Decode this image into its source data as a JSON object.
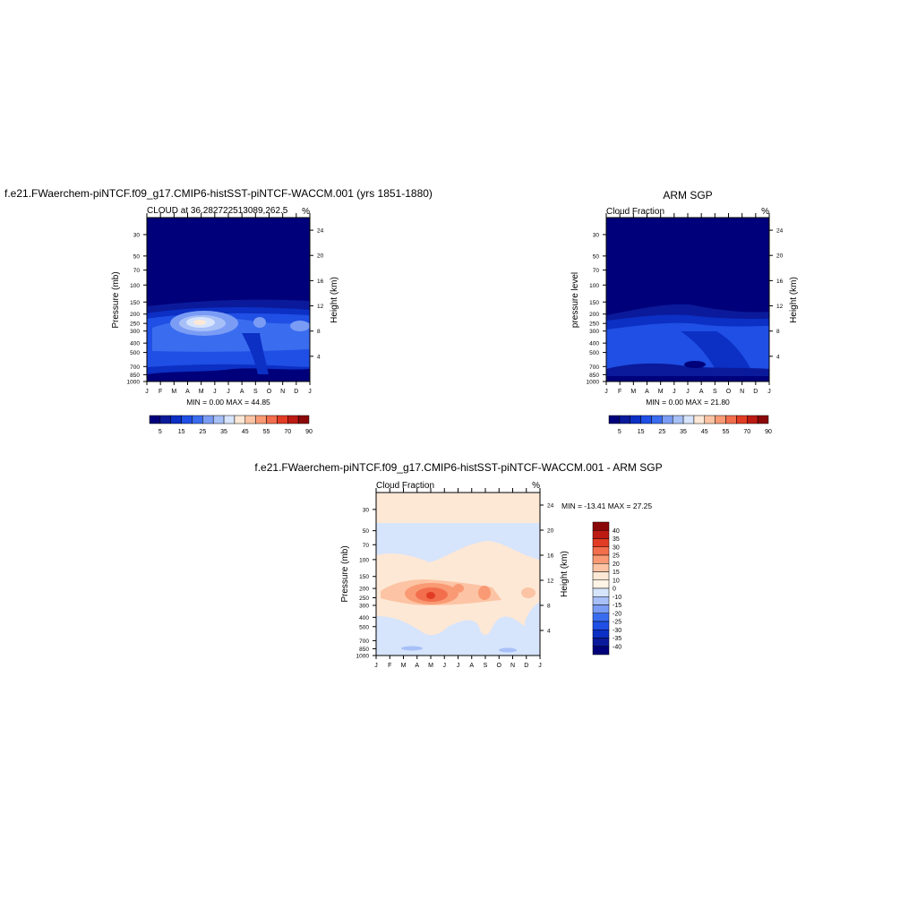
{
  "figure": {
    "top_title": "f.e21.FWaerchem-piNTCF.f09_g17.CMIP6-histSST-piNTCF-WACCM.001 (yrs 1851-1880)",
    "obs_title": "ARM SGP",
    "diff_title": "f.e21.FWaerchem-piNTCF.f09_g17.CMIP6-histSST-piNTCF-WACCM.001 - ARM SGP"
  },
  "panels": [
    {
      "id": "model",
      "left_label": "CLOUD at 36.282722513089,262.5",
      "units": "%",
      "ylabel": "Pressure (mb)",
      "ylabel_right": "Height (km)",
      "stats": "MIN =   0.00 MAX =  44.85"
    },
    {
      "id": "obs",
      "left_label": "Cloud Fraction",
      "units": "%",
      "ylabel": "pressure level",
      "ylabel_right": "Height (km)",
      "stats": "MIN =   0.00 MAX =  21.80"
    },
    {
      "id": "diff",
      "left_label": "Cloud Fraction",
      "units": "%",
      "ylabel": "Pressure (mb)",
      "ylabel_right": "Height (km)",
      "stats": "MIN = -13.41 MAX =  27.25"
    }
  ],
  "chart_data": [
    {
      "type": "heatmap",
      "title": "CLOUD at 36.282722513089,262.5",
      "x": [
        "J",
        "F",
        "M",
        "A",
        "M",
        "J",
        "J",
        "A",
        "S",
        "O",
        "N",
        "D",
        "J"
      ],
      "y_pressure_ticks": [
        30,
        50,
        70,
        100,
        150,
        200,
        250,
        300,
        400,
        500,
        700,
        850,
        1000
      ],
      "y_height_ticks": [
        24,
        20,
        16,
        12,
        8,
        4
      ],
      "ylabel": "Pressure (mb)",
      "ylabel_right": "Height (km)",
      "ylim": [
        1000,
        20
      ],
      "y_scale": "log",
      "colorbar_labels": [
        5,
        15,
        25,
        35,
        45,
        55,
        70,
        90
      ],
      "min": 0.0,
      "max": 44.85,
      "units": "%"
    },
    {
      "type": "heatmap",
      "title": "Cloud Fraction",
      "x": [
        "J",
        "F",
        "M",
        "A",
        "M",
        "J",
        "J",
        "A",
        "S",
        "O",
        "N",
        "D",
        "J"
      ],
      "y_pressure_ticks": [
        30,
        50,
        70,
        100,
        150,
        200,
        250,
        300,
        400,
        500,
        700,
        850,
        1000
      ],
      "y_height_ticks": [
        24,
        20,
        16,
        12,
        8,
        4
      ],
      "ylabel": "pressure level",
      "ylabel_right": "Height (km)",
      "ylim": [
        1000,
        20
      ],
      "y_scale": "log",
      "colorbar_labels": [
        5,
        15,
        25,
        35,
        45,
        55,
        70,
        90
      ],
      "min": 0.0,
      "max": 21.8,
      "units": "%"
    },
    {
      "type": "heatmap",
      "title": "Cloud Fraction",
      "x": [
        "J",
        "F",
        "M",
        "A",
        "M",
        "J",
        "J",
        "A",
        "S",
        "O",
        "N",
        "D",
        "J"
      ],
      "y_pressure_ticks": [
        30,
        50,
        70,
        100,
        150,
        200,
        250,
        300,
        400,
        500,
        700,
        850,
        1000
      ],
      "y_height_ticks": [
        24,
        20,
        16,
        12,
        8,
        4
      ],
      "ylabel": "Pressure (mb)",
      "ylabel_right": "Height (km)",
      "ylim": [
        1000,
        20
      ],
      "y_scale": "log",
      "colorbar_labels": [
        40,
        35,
        30,
        25,
        20,
        15,
        10,
        0,
        -10,
        -15,
        -20,
        -25,
        -30,
        -35,
        -40
      ],
      "min": -13.41,
      "max": 27.25,
      "units": "%"
    }
  ],
  "colors": {
    "cloud_scale": [
      "#00007a",
      "#0a1a9a",
      "#0c2fc4",
      "#1f4fe4",
      "#3a6cf0",
      "#7a9cf4",
      "#a8c0f8",
      "#d6e4fc",
      "#fde8d6",
      "#fcc4a4",
      "#f99a74",
      "#f26e4c",
      "#e23c24",
      "#bd1a14",
      "#8a0808"
    ],
    "diff_scale": [
      "#8a0808",
      "#bd1a14",
      "#e23c24",
      "#f26e4c",
      "#f99a74",
      "#fcc4a4",
      "#fde8d6",
      "#fff4e6",
      "#d6e4fc",
      "#a8c0f8",
      "#7a9cf4",
      "#3a6cf0",
      "#1f4fe4",
      "#0c2fc4",
      "#0a1a9a",
      "#00007a"
    ]
  }
}
